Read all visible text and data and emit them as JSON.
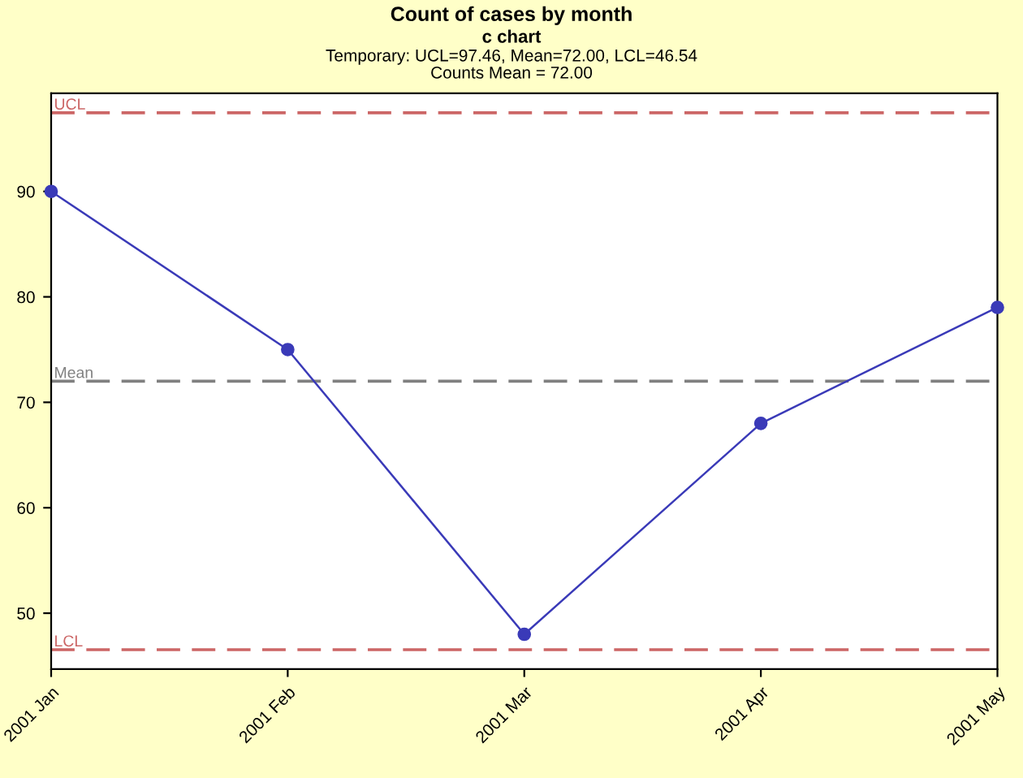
{
  "chart_data": {
    "type": "line",
    "title": "Count of cases by month",
    "subtitle": "c chart",
    "annotations": [
      "Temporary: UCL=97.46, Mean=72.00, LCL=46.54",
      "Counts Mean = 72.00"
    ],
    "categories": [
      "2001 Jan",
      "2001 Feb",
      "2001 Mar",
      "2001 Apr",
      "2001 May"
    ],
    "series": [
      {
        "color": "#3a3ab8",
        "values": [
          90,
          75,
          48,
          68,
          79
        ]
      }
    ],
    "marker": "circle",
    "line_style": "solid",
    "ylim": [
      44.7,
      99.3
    ],
    "yticks": [
      50,
      60,
      70,
      80,
      90
    ],
    "ref_lines": [
      {
        "axis": "y",
        "value": 97.46,
        "label": "UCL",
        "color": "#cc6666",
        "line_style": "dashed"
      },
      {
        "axis": "y",
        "value": 72,
        "label": "Mean",
        "color": "#808080",
        "line_style": "dashed"
      },
      {
        "axis": "y",
        "value": 46.54,
        "label": "LCL",
        "color": "#cc6666",
        "line_style": "dashed"
      }
    ],
    "grid": false,
    "legend": false
  }
}
